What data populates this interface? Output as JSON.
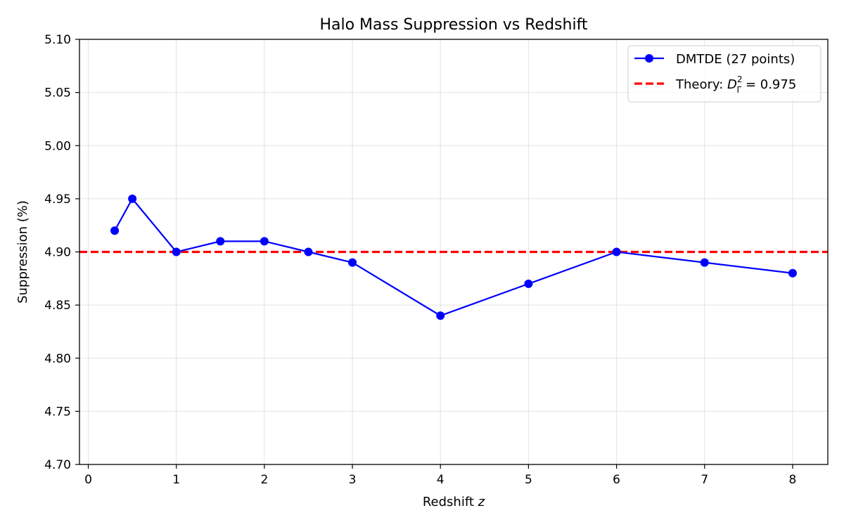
{
  "chart_data": {
    "type": "line",
    "title": "Halo Mass Suppression vs Redshift",
    "xlabel": "Redshift",
    "xlabel_var": "z",
    "ylabel": "Suppression (%)",
    "xlim": [
      -0.1,
      8.4
    ],
    "ylim": [
      4.7,
      5.1
    ],
    "x_ticks": [
      0,
      1,
      2,
      3,
      4,
      5,
      6,
      7,
      8
    ],
    "x_tick_labels": [
      "0",
      "1",
      "2",
      "3",
      "4",
      "5",
      "6",
      "7",
      "8"
    ],
    "y_ticks": [
      4.7,
      4.75,
      4.8,
      4.85,
      4.9,
      4.95,
      5.0,
      5.05,
      5.1
    ],
    "y_tick_labels": [
      "4.70",
      "4.75",
      "4.80",
      "4.85",
      "4.90",
      "4.95",
      "5.00",
      "5.05",
      "5.10"
    ],
    "grid": true,
    "legend_position": "top-right",
    "series": [
      {
        "name": "DMTDE (27 points)",
        "color": "#0000ff",
        "marker": "circle",
        "x": [
          0.3,
          0.5,
          1.0,
          1.5,
          2.0,
          2.5,
          3.0,
          4.0,
          5.0,
          6.0,
          7.0,
          8.0
        ],
        "y": [
          4.92,
          4.95,
          4.9,
          4.91,
          4.91,
          4.9,
          4.89,
          4.84,
          4.87,
          4.9,
          4.89,
          4.88
        ]
      }
    ],
    "reference_line": {
      "name_prefix": "Theory: ",
      "name_symbol": "D",
      "name_superscript": "2",
      "name_subscript": "Γ",
      "name_suffix": " = 0.975",
      "y": 4.9,
      "color": "#ff0000",
      "style": "dashed"
    }
  }
}
